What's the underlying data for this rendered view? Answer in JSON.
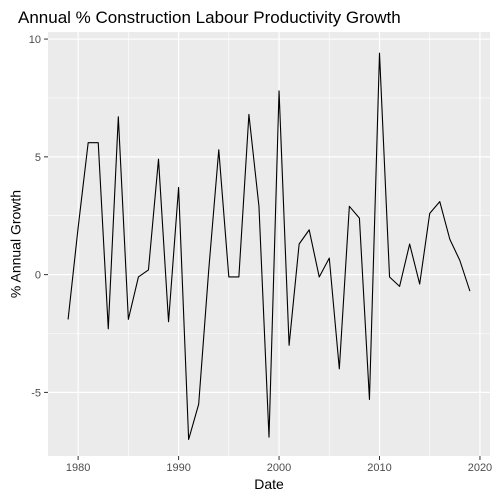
{
  "chart_data": {
    "type": "line",
    "title": "Annual % Construction Labour Productivity Growth",
    "xlabel": "Date",
    "ylabel": "% Annual Growth",
    "xlim": [
      1977.0,
      2021.0
    ],
    "ylim": [
      -7.7,
      10.3
    ],
    "x_ticks": [
      1980,
      1990,
      2000,
      2010,
      2020
    ],
    "y_ticks": [
      -5,
      0,
      5,
      10
    ],
    "grid": true,
    "panel_background": "#ebebeb",
    "grid_color": "#ffffff",
    "line_color": "#000000",
    "series": [
      {
        "x": [
          1979,
          1980,
          1981,
          1982,
          1983,
          1984,
          1985,
          1986,
          1987,
          1988,
          1989,
          1990,
          1991,
          1992,
          1993,
          1994,
          1995,
          1996,
          1997,
          1998,
          1999,
          2000,
          2001,
          2002,
          2003,
          2004,
          2005,
          2006,
          2007,
          2008,
          2009,
          2010,
          2011,
          2012,
          2013,
          2014,
          2015,
          2016,
          2017,
          2018,
          2019
        ],
        "values": [
          -1.9,
          2.0,
          5.6,
          5.6,
          -2.3,
          6.7,
          -1.9,
          -0.1,
          0.2,
          4.9,
          -2.0,
          3.7,
          -7.0,
          -5.5,
          0.2,
          5.3,
          -0.1,
          -0.1,
          6.8,
          2.9,
          -6.9,
          7.8,
          -3.0,
          1.3,
          1.9,
          -0.1,
          0.7,
          -4.0,
          2.9,
          2.4,
          -5.3,
          9.4,
          -0.1,
          -0.5,
          1.3,
          -0.4,
          2.6,
          3.1,
          1.5,
          0.6,
          -0.7
        ]
      }
    ]
  }
}
